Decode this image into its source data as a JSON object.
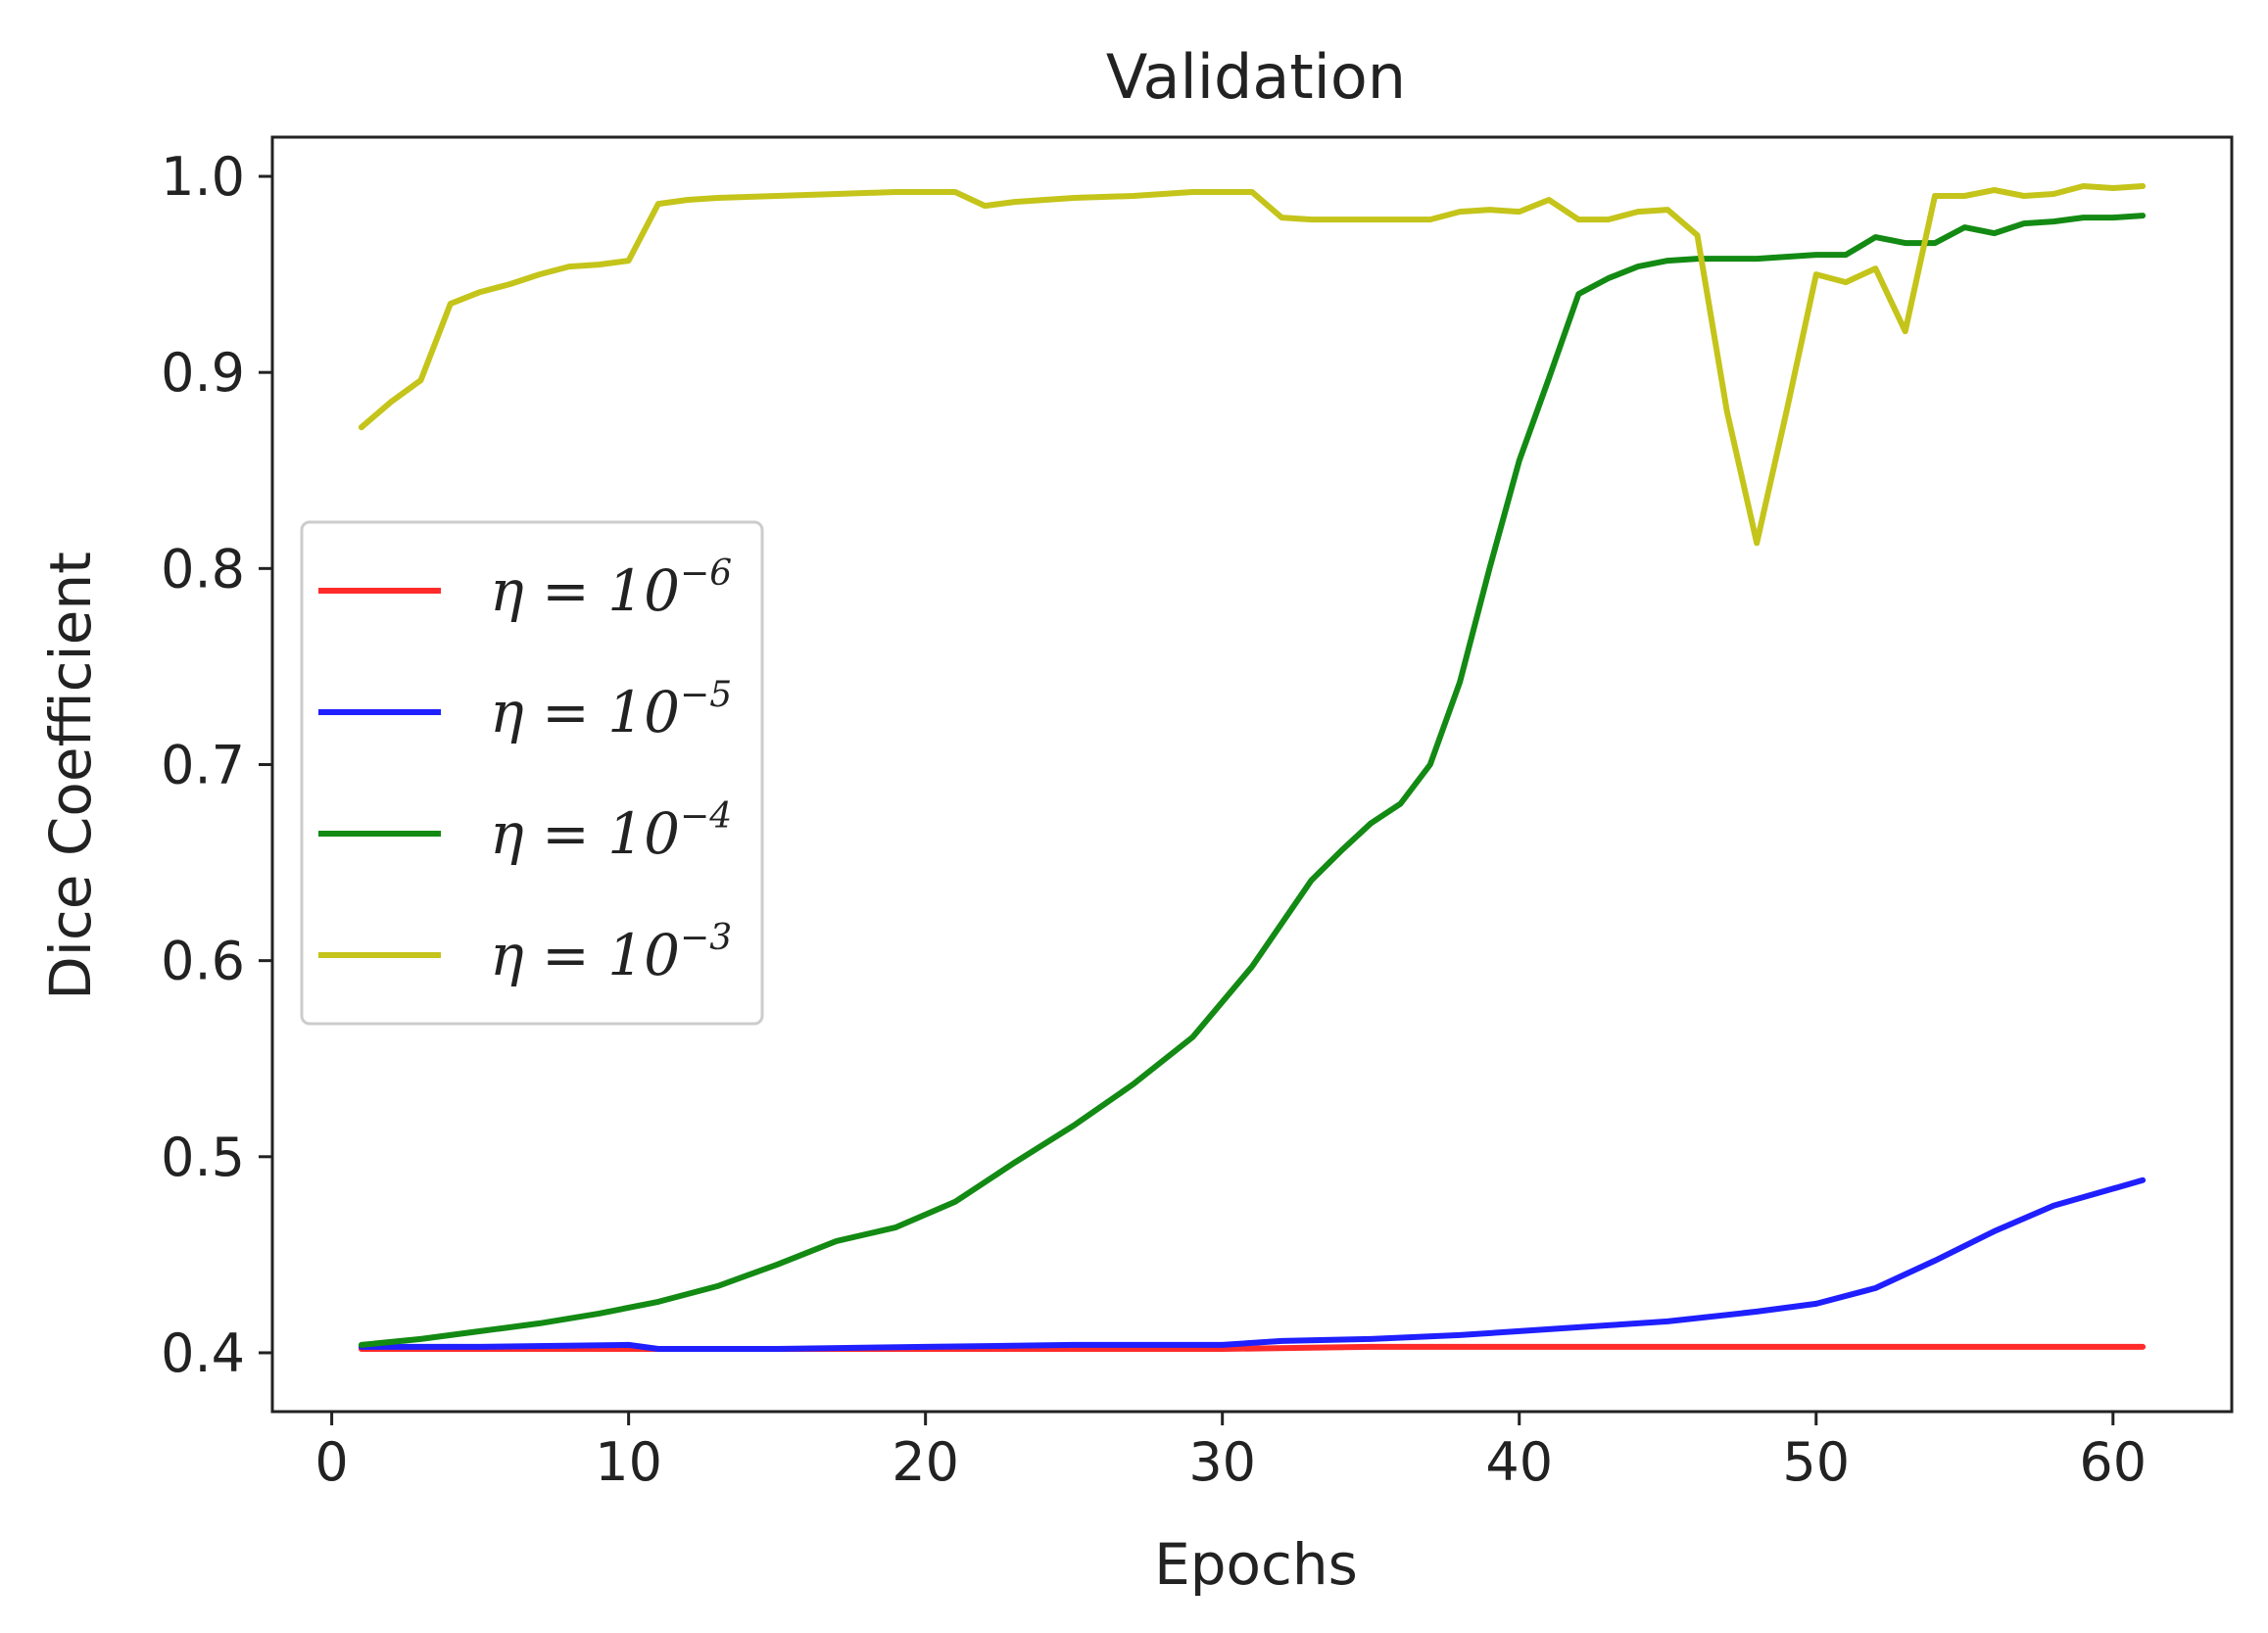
{
  "chart_data": {
    "type": "line",
    "title": "Validation",
    "xlabel": "Epochs",
    "ylabel": "Dice Coefficient",
    "xlim": [
      -2,
      64
    ],
    "ylim": [
      0.37,
      1.02
    ],
    "xticks": [
      0,
      10,
      20,
      30,
      40,
      50,
      60
    ],
    "xtick_labels": [
      "0",
      "10",
      "20",
      "30",
      "40",
      "50",
      "60"
    ],
    "yticks": [
      0.4,
      0.5,
      0.6,
      0.7,
      0.8,
      0.9,
      1.0
    ],
    "ytick_labels": [
      "0.4",
      "0.5",
      "0.6",
      "0.7",
      "0.8",
      "0.9",
      "1.0"
    ],
    "grid": false,
    "legend_position": "center-left",
    "series": [
      {
        "name": "η = 10^−6",
        "legend_base": "η = 10",
        "legend_exp": "−6",
        "color": "#ff2b2b",
        "x": [
          1,
          5,
          10,
          15,
          20,
          25,
          30,
          35,
          40,
          45,
          50,
          55,
          61
        ],
        "values": [
          0.402,
          0.402,
          0.402,
          0.402,
          0.402,
          0.402,
          0.402,
          0.403,
          0.403,
          0.403,
          0.403,
          0.403,
          0.403
        ]
      },
      {
        "name": "η = 10^−5",
        "legend_base": "η = 10",
        "legend_exp": "−5",
        "color": "#1f1fff",
        "x": [
          1,
          5,
          10,
          11,
          15,
          20,
          25,
          30,
          32,
          35,
          38,
          40,
          43,
          45,
          48,
          50,
          52,
          54,
          56,
          58,
          61
        ],
        "values": [
          0.403,
          0.403,
          0.404,
          0.402,
          0.402,
          0.403,
          0.404,
          0.404,
          0.406,
          0.407,
          0.409,
          0.411,
          0.414,
          0.416,
          0.421,
          0.425,
          0.433,
          0.447,
          0.462,
          0.475,
          0.488
        ]
      },
      {
        "name": "η = 10^−4",
        "legend_base": "η = 10",
        "legend_exp": "−4",
        "color": "#138a13",
        "x": [
          1,
          3,
          5,
          7,
          9,
          11,
          13,
          15,
          17,
          19,
          21,
          23,
          25,
          27,
          29,
          31,
          33,
          34,
          35,
          36,
          37,
          38,
          39,
          40,
          41,
          42,
          43,
          44,
          45,
          46,
          48,
          50,
          51,
          52,
          53,
          54,
          55,
          56,
          57,
          58,
          59,
          60,
          61
        ],
        "values": [
          0.404,
          0.407,
          0.411,
          0.415,
          0.42,
          0.426,
          0.434,
          0.445,
          0.457,
          0.464,
          0.477,
          0.497,
          0.516,
          0.537,
          0.561,
          0.597,
          0.641,
          0.656,
          0.67,
          0.68,
          0.7,
          0.742,
          0.8,
          0.855,
          0.897,
          0.94,
          0.948,
          0.954,
          0.957,
          0.958,
          0.958,
          0.96,
          0.96,
          0.969,
          0.966,
          0.966,
          0.974,
          0.971,
          0.976,
          0.977,
          0.979,
          0.979,
          0.98
        ]
      },
      {
        "name": "η = 10^−3",
        "legend_base": "η = 10",
        "legend_exp": "−3",
        "color": "#c4c41a",
        "x": [
          1,
          2,
          3,
          4,
          5,
          6,
          7,
          8,
          9,
          10,
          11,
          12,
          13,
          15,
          17,
          19,
          21,
          22,
          23,
          25,
          27,
          29,
          31,
          32,
          33,
          35,
          37,
          38,
          39,
          40,
          41,
          42,
          43,
          44,
          45,
          46,
          47,
          48,
          49,
          50,
          51,
          52,
          53,
          54,
          55,
          56,
          57,
          58,
          59,
          60,
          61
        ],
        "values": [
          0.872,
          0.885,
          0.896,
          0.935,
          0.941,
          0.945,
          0.95,
          0.954,
          0.955,
          0.957,
          0.986,
          0.988,
          0.989,
          0.99,
          0.991,
          0.992,
          0.992,
          0.985,
          0.987,
          0.989,
          0.99,
          0.992,
          0.992,
          0.979,
          0.978,
          0.978,
          0.978,
          0.982,
          0.983,
          0.982,
          0.988,
          0.978,
          0.978,
          0.982,
          0.983,
          0.97,
          0.88,
          0.813,
          0.88,
          0.95,
          0.946,
          0.953,
          0.921,
          0.99,
          0.99,
          0.993,
          0.99,
          0.991,
          0.995,
          0.994,
          0.995
        ]
      }
    ]
  }
}
